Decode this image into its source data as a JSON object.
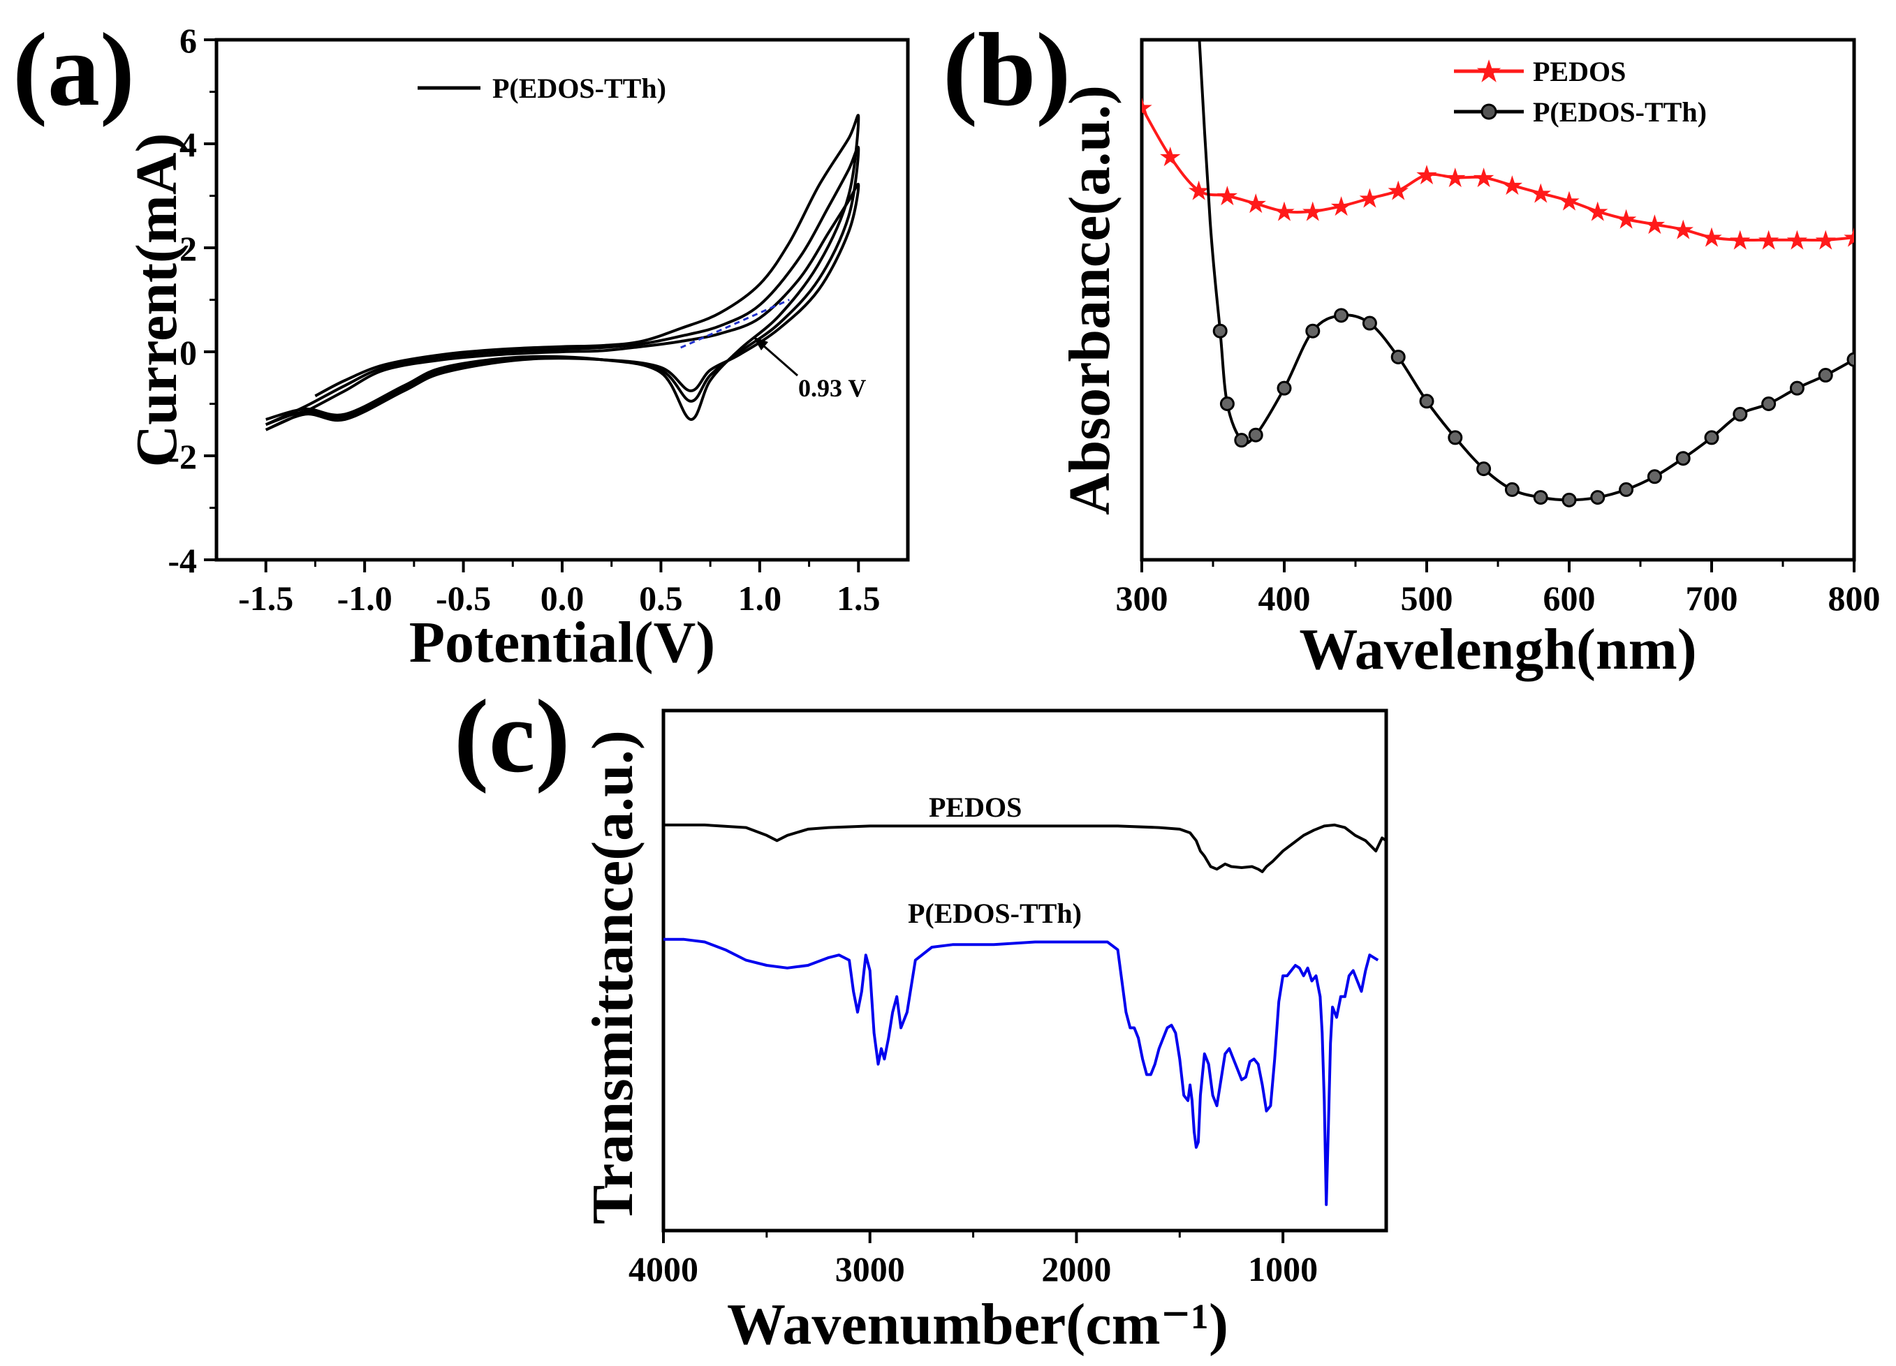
{
  "figure_labels": {
    "a": "(a)",
    "b": "(b)",
    "c": "(c)"
  },
  "chart_data": [
    {
      "id": "a",
      "type": "line",
      "title": "",
      "xlabel": "Potential(V)",
      "ylabel": "Current(mA)",
      "xlim": [
        -1.75,
        1.75
      ],
      "ylim": [
        -4,
        6
      ],
      "xticks": [
        -1.5,
        -1.0,
        -0.5,
        0.0,
        0.5,
        1.0,
        1.5
      ],
      "xtick_labels": [
        "-1.5",
        "-1.0",
        "-0.5",
        "0.0",
        "0.5",
        "1.0",
        "1.5"
      ],
      "yticks": [
        -4,
        -2,
        0,
        2,
        4,
        6
      ],
      "ytick_labels": [
        "-4",
        "-2",
        "0",
        "2",
        "4",
        "6"
      ],
      "legend": [
        "P(EDOS-TTh)"
      ],
      "legend_position": "top-center",
      "annotation": {
        "text": "0.93 V",
        "point": [
          0.93,
          0.1
        ]
      },
      "onset_tangent": {
        "x": [
          0.6,
          1.15
        ],
        "y": [
          0.08,
          1.0
        ],
        "color": "#2233cc"
      },
      "series": [
        {
          "name": "P(EDOS-TTh) cycle 1",
          "color": "#000000",
          "x": [
            -1.25,
            -1.1,
            -0.9,
            -0.6,
            -0.3,
            0.0,
            0.2,
            0.4,
            0.6,
            0.8,
            1.0,
            1.15,
            1.3,
            1.45,
            1.5,
            1.45,
            1.3,
            1.1,
            0.9,
            0.75,
            0.65,
            0.5,
            0.2,
            -0.2,
            -0.6,
            -0.8,
            -1.1,
            -1.3,
            -1.5
          ],
          "y": [
            -0.85,
            -0.55,
            -0.25,
            -0.05,
            0.05,
            0.1,
            0.12,
            0.2,
            0.45,
            0.75,
            1.3,
            2.1,
            3.2,
            4.1,
            4.5,
            3.0,
            1.7,
            0.7,
            0.05,
            -0.55,
            -1.3,
            -0.4,
            -0.15,
            -0.1,
            -0.3,
            -0.65,
            -1.2,
            -1.1,
            -1.3
          ]
        },
        {
          "name": "P(EDOS-TTh) cycle 2",
          "color": "#000000",
          "x": [
            -1.5,
            -1.3,
            -1.1,
            -0.9,
            -0.6,
            -0.3,
            0.0,
            0.2,
            0.4,
            0.6,
            0.8,
            1.0,
            1.2,
            1.35,
            1.45,
            1.5,
            1.45,
            1.3,
            1.1,
            0.9,
            0.75,
            0.65,
            0.5,
            0.2,
            -0.2,
            -0.6,
            -0.8,
            -1.1,
            -1.3,
            -1.5
          ],
          "y": [
            -1.4,
            -1.05,
            -0.65,
            -0.3,
            -0.1,
            0.0,
            0.05,
            0.08,
            0.15,
            0.3,
            0.5,
            0.9,
            1.8,
            2.8,
            3.5,
            3.9,
            2.6,
            1.4,
            0.55,
            0.0,
            -0.45,
            -0.95,
            -0.35,
            -0.15,
            -0.12,
            -0.35,
            -0.7,
            -1.25,
            -1.15,
            -1.4
          ]
        },
        {
          "name": "P(EDOS-TTh) cycle 3",
          "color": "#000000",
          "x": [
            -1.5,
            -1.3,
            -1.1,
            -0.9,
            -0.6,
            -0.3,
            0.0,
            0.2,
            0.4,
            0.6,
            0.8,
            1.0,
            1.2,
            1.35,
            1.45,
            1.5,
            1.45,
            1.3,
            1.1,
            0.9,
            0.75,
            0.65,
            0.5,
            0.2,
            -0.2,
            -0.6,
            -0.8,
            -1.1,
            -1.3,
            -1.5
          ],
          "y": [
            -1.5,
            -1.15,
            -0.75,
            -0.35,
            -0.15,
            -0.05,
            0.0,
            0.02,
            0.1,
            0.2,
            0.35,
            0.65,
            1.4,
            2.3,
            2.9,
            3.2,
            2.3,
            1.2,
            0.45,
            -0.05,
            -0.35,
            -0.75,
            -0.3,
            -0.15,
            -0.15,
            -0.4,
            -0.75,
            -1.3,
            -1.2,
            -1.5
          ]
        }
      ]
    },
    {
      "id": "b",
      "type": "line",
      "title": "",
      "xlabel": "Wavelengh(nm)",
      "ylabel": "Absorbance(a.u.)",
      "xlim": [
        300,
        800
      ],
      "ylim": [
        0,
        10
      ],
      "xticks": [
        300,
        400,
        500,
        600,
        700,
        800
      ],
      "xtick_labels": [
        "300",
        "400",
        "500",
        "600",
        "700",
        "800"
      ],
      "yticks": [],
      "legend": [
        "PEDOS",
        "P(EDOS-TTh)"
      ],
      "legend_position": "top-right",
      "series": [
        {
          "name": "PEDOS",
          "color": "#ff1a1a",
          "marker": "star",
          "x": [
            300,
            320,
            340,
            360,
            380,
            400,
            420,
            440,
            460,
            480,
            500,
            520,
            540,
            560,
            580,
            600,
            620,
            640,
            660,
            680,
            700,
            720,
            740,
            760,
            780,
            800
          ],
          "y": [
            8.7,
            7.75,
            7.1,
            7.0,
            6.85,
            6.7,
            6.7,
            6.8,
            6.95,
            7.1,
            7.4,
            7.35,
            7.35,
            7.2,
            7.05,
            6.9,
            6.7,
            6.55,
            6.45,
            6.35,
            6.2,
            6.15,
            6.15,
            6.15,
            6.15,
            6.2
          ]
        },
        {
          "name": "P(EDOS-TTh)",
          "color": "#000000",
          "marker": "circle",
          "x": [
            340,
            348,
            355,
            360,
            370,
            380,
            400,
            420,
            440,
            460,
            480,
            500,
            520,
            540,
            560,
            580,
            600,
            620,
            640,
            660,
            680,
            700,
            720,
            740,
            760,
            780,
            800
          ],
          "y": [
            10.2,
            6.5,
            4.4,
            3.0,
            2.3,
            2.4,
            3.3,
            4.4,
            4.7,
            4.55,
            3.9,
            3.05,
            2.35,
            1.75,
            1.35,
            1.2,
            1.15,
            1.2,
            1.35,
            1.6,
            1.95,
            2.35,
            2.8,
            3.0,
            3.3,
            3.55,
            3.85
          ]
        }
      ]
    },
    {
      "id": "c",
      "type": "line",
      "title": "",
      "xlabel": "Wavenumber(cm⁻¹)",
      "ylabel": "Transmittance(a.u.)",
      "xlim": [
        4000,
        500
      ],
      "ylim": [
        0,
        10
      ],
      "xticks": [
        4000,
        3000,
        2000,
        1000
      ],
      "xtick_labels": [
        "4000",
        "3000",
        "2000",
        "1000"
      ],
      "yticks": [],
      "series_labels": [
        "PEDOS",
        "P(EDOS-TTh)"
      ],
      "series": [
        {
          "name": "PEDOS",
          "color": "#000000",
          "x": [
            4000,
            3800,
            3600,
            3500,
            3450,
            3400,
            3300,
            3200,
            3000,
            2800,
            2600,
            2400,
            2200,
            2000,
            1800,
            1600,
            1500,
            1450,
            1420,
            1400,
            1380,
            1350,
            1320,
            1300,
            1280,
            1250,
            1200,
            1150,
            1120,
            1100,
            1080,
            1050,
            1000,
            950,
            900,
            850,
            800,
            750,
            700,
            650,
            600,
            550,
            520,
            500
          ],
          "y": [
            7.8,
            7.8,
            7.75,
            7.6,
            7.5,
            7.6,
            7.72,
            7.75,
            7.78,
            7.78,
            7.78,
            7.78,
            7.78,
            7.78,
            7.78,
            7.75,
            7.72,
            7.65,
            7.5,
            7.3,
            7.2,
            7.0,
            6.95,
            7.0,
            7.05,
            7.0,
            6.98,
            7.0,
            6.95,
            6.9,
            7.0,
            7.1,
            7.3,
            7.45,
            7.6,
            7.7,
            7.78,
            7.8,
            7.75,
            7.6,
            7.5,
            7.3,
            7.55,
            7.5
          ]
        },
        {
          "name": "P(EDOS-TTh)",
          "color": "#0000ee",
          "x": [
            4000,
            3900,
            3800,
            3700,
            3600,
            3500,
            3400,
            3300,
            3200,
            3150,
            3100,
            3080,
            3060,
            3040,
            3020,
            3000,
            2980,
            2960,
            2945,
            2930,
            2910,
            2890,
            2870,
            2850,
            2820,
            2780,
            2700,
            2600,
            2400,
            2200,
            2000,
            1850,
            1800,
            1780,
            1760,
            1740,
            1720,
            1700,
            1680,
            1660,
            1640,
            1620,
            1600,
            1580,
            1560,
            1540,
            1520,
            1500,
            1480,
            1460,
            1450,
            1440,
            1430,
            1420,
            1410,
            1400,
            1380,
            1360,
            1340,
            1320,
            1300,
            1280,
            1260,
            1240,
            1220,
            1200,
            1180,
            1160,
            1140,
            1120,
            1100,
            1080,
            1060,
            1040,
            1020,
            1000,
            980,
            960,
            940,
            920,
            900,
            880,
            860,
            840,
            820,
            810,
            800,
            790,
            780,
            770,
            760,
            740,
            720,
            700,
            680,
            660,
            640,
            620,
            600,
            580,
            560,
            540
          ],
          "y": [
            5.6,
            5.6,
            5.55,
            5.4,
            5.2,
            5.1,
            5.05,
            5.1,
            5.25,
            5.3,
            5.2,
            4.6,
            4.2,
            4.6,
            5.3,
            5.0,
            3.8,
            3.2,
            3.5,
            3.3,
            3.7,
            4.2,
            4.5,
            3.9,
            4.2,
            5.2,
            5.45,
            5.5,
            5.5,
            5.55,
            5.55,
            5.55,
            5.4,
            4.8,
            4.2,
            3.9,
            3.9,
            3.7,
            3.3,
            3.0,
            3.0,
            3.2,
            3.5,
            3.7,
            3.9,
            3.95,
            3.8,
            3.3,
            2.6,
            2.5,
            2.8,
            2.5,
            1.9,
            1.6,
            1.7,
            2.6,
            3.4,
            3.2,
            2.6,
            2.4,
            2.9,
            3.4,
            3.5,
            3.3,
            3.1,
            2.9,
            2.95,
            3.25,
            3.3,
            3.2,
            2.8,
            2.3,
            2.4,
            3.3,
            4.4,
            4.9,
            4.9,
            5.0,
            5.1,
            5.05,
            4.9,
            5.05,
            4.8,
            4.9,
            4.5,
            3.8,
            2.5,
            0.5,
            2.0,
            3.6,
            4.3,
            4.1,
            4.5,
            4.5,
            4.9,
            5.0,
            4.8,
            4.6,
            5.0,
            5.3,
            5.25,
            5.2
          ]
        }
      ]
    }
  ]
}
